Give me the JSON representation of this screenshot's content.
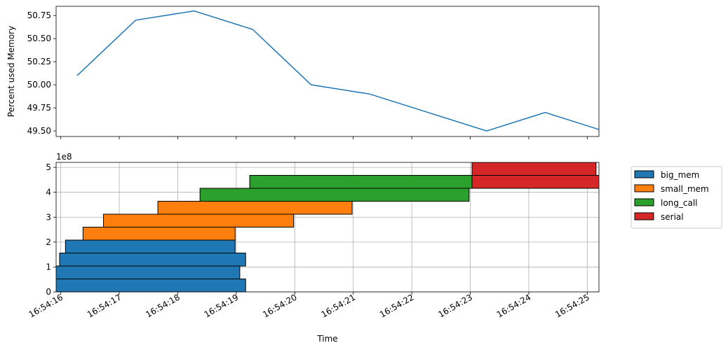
{
  "chart_data": [
    {
      "type": "line",
      "ylabel": "Percent used Memory",
      "ylim": [
        49.44,
        50.85
      ],
      "yticks": [
        49.5,
        49.75,
        50.0,
        50.25,
        50.5,
        50.75
      ],
      "ytick_labels": [
        "49.50",
        "49.75",
        "50.00",
        "50.25",
        "50.50",
        "50.75"
      ],
      "xlim": [
        -0.08,
        9.2
      ],
      "grid": false,
      "color": "#1f77b4",
      "series": [
        {
          "x": [
            0.28,
            1.28,
            2.28,
            3.28,
            4.28,
            5.28,
            6.28,
            7.28,
            8.28,
            9.28
          ],
          "y": [
            50.1,
            50.7,
            50.8,
            50.6,
            50.0,
            49.9,
            49.7,
            49.5,
            49.7,
            49.5
          ]
        }
      ]
    },
    {
      "type": "bar",
      "orientation": "horizontal",
      "xlabel": "Time",
      "ylim": [
        0,
        5.2
      ],
      "yticks": [
        0,
        1,
        2,
        3,
        4,
        5
      ],
      "ytick_labels": [
        "0",
        "1",
        "2",
        "3",
        "4",
        "5"
      ],
      "y_scale_label": "1e8",
      "xlim": [
        -0.08,
        9.2
      ],
      "xticks": [
        0,
        1,
        2,
        3,
        4,
        5,
        6,
        7,
        8,
        9
      ],
      "xtick_labels": [
        "16:54:16",
        "16:54:17",
        "16:54:18",
        "16:54:19",
        "16:54:20",
        "16:54:21",
        "16:54:22",
        "16:54:23",
        "16:54:24",
        "16:54:25"
      ],
      "grid": true,
      "legend": "outside-right",
      "series": [
        {
          "name": "big_mem",
          "color": "#1f77b4",
          "bars": [
            {
              "start": -0.12,
              "end": 3.16,
              "bottom": 0.0
            },
            {
              "start": -0.12,
              "end": 3.06,
              "bottom": 0.52
            },
            {
              "start": -0.02,
              "end": 3.16,
              "bottom": 1.04
            },
            {
              "start": 0.08,
              "end": 2.98,
              "bottom": 1.56
            }
          ]
        },
        {
          "name": "small_mem",
          "color": "#ff7f0e",
          "bars": [
            {
              "start": 0.38,
              "end": 2.98,
              "bottom": 2.08
            },
            {
              "start": 0.73,
              "end": 3.98,
              "bottom": 2.6
            },
            {
              "start": 1.66,
              "end": 4.98,
              "bottom": 3.12
            }
          ]
        },
        {
          "name": "long_call",
          "color": "#2ca02c",
          "bars": [
            {
              "start": 2.38,
              "end": 6.98,
              "bottom": 3.64
            },
            {
              "start": 3.23,
              "end": 7.03,
              "bottom": 4.16
            }
          ]
        },
        {
          "name": "serial",
          "color": "#d62728",
          "bars": [
            {
              "start": 7.03,
              "end": 9.3,
              "bottom": 4.16
            },
            {
              "start": 7.03,
              "end": 9.15,
              "bottom": 4.68
            }
          ]
        }
      ]
    }
  ]
}
